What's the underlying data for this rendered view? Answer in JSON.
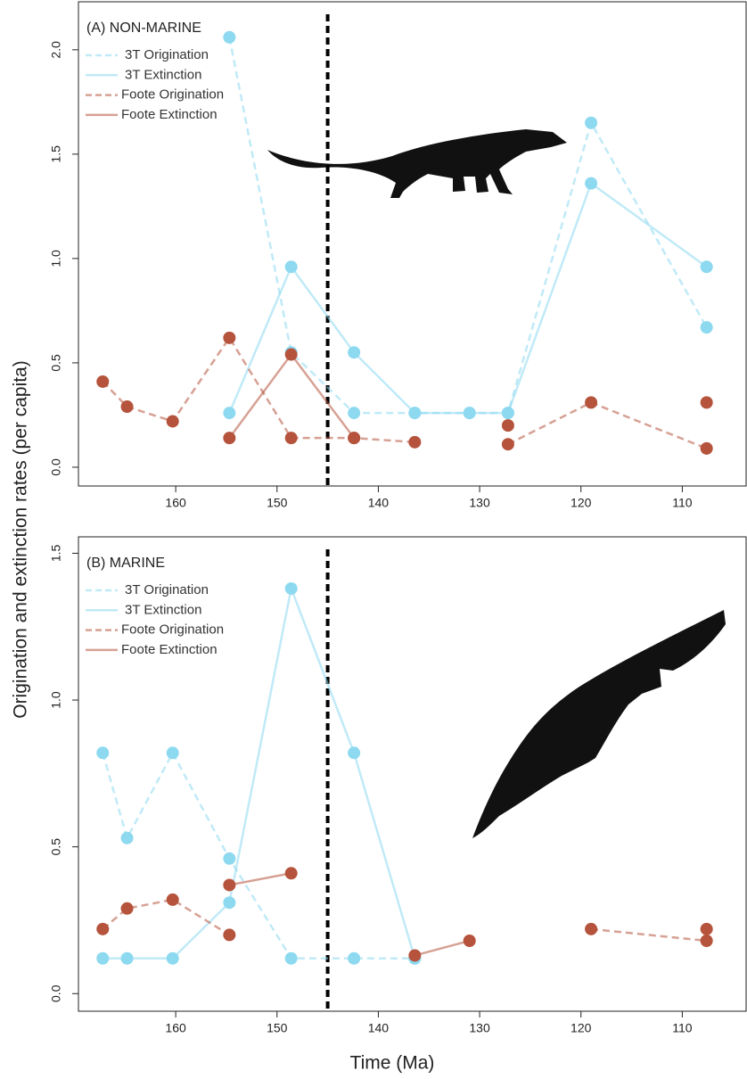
{
  "xlabel": "Time (Ma)",
  "ylabel": "Origination and extinction rates (per capita)",
  "chart_data": [
    {
      "type": "line",
      "title": "(A) NON-MARINE",
      "x": [
        167.2,
        164.8,
        160.3,
        154.7,
        148.6,
        142.4,
        136.4,
        131.0,
        127.2,
        119.0,
        107.6
      ],
      "series": [
        {
          "name": "3T Origination",
          "color": "#8dd9f0",
          "dash": true,
          "values": [
            null,
            null,
            null,
            2.06,
            0.55,
            0.26,
            0.26,
            0.26,
            0.26,
            1.65,
            0.67
          ]
        },
        {
          "name": "3T Extinction",
          "color": "#8dd9f0",
          "dash": false,
          "values": [
            null,
            null,
            null,
            0.26,
            0.96,
            0.55,
            0.26,
            0.26,
            0.26,
            1.36,
            0.96
          ]
        },
        {
          "name": "Foote Origination",
          "color": "#b5533c",
          "dash": true,
          "values": [
            0.41,
            0.29,
            0.22,
            0.62,
            0.14,
            0.14,
            0.12,
            null,
            0.11,
            0.31,
            0.09
          ]
        },
        {
          "name": "Foote Extinction",
          "color": "#b5533c",
          "dash": false,
          "values": [
            null,
            null,
            null,
            0.14,
            0.54,
            0.14,
            null,
            null,
            0.2,
            null,
            0.31
          ]
        }
      ],
      "xlim": [
        169.6,
        103.7
      ],
      "ylim": [
        -0.09,
        2.23
      ],
      "xticks": [
        160,
        150,
        140,
        130,
        120,
        110
      ],
      "yticks": [
        {
          "value": 0,
          "label": "0.0"
        },
        {
          "value": 0.5,
          "label": "0.5"
        },
        {
          "value": 1,
          "label": "1.0"
        },
        {
          "value": 1.5,
          "label": "1.5"
        },
        {
          "value": 2,
          "label": "2.0"
        }
      ],
      "vline": 145
    },
    {
      "type": "line",
      "title": "(B) MARINE",
      "x": [
        167.2,
        164.8,
        160.3,
        154.7,
        148.6,
        142.4,
        136.4,
        131.0,
        127.2,
        119.0,
        107.6
      ],
      "series": [
        {
          "name": "3T Origination",
          "color": "#8dd9f0",
          "dash": true,
          "values": [
            0.82,
            0.53,
            0.82,
            0.46,
            0.12,
            0.12,
            0.12,
            null,
            null,
            null,
            null
          ]
        },
        {
          "name": "3T Extinction",
          "color": "#8dd9f0",
          "dash": false,
          "values": [
            0.12,
            0.12,
            0.12,
            0.31,
            1.38,
            0.82,
            0.12,
            null,
            null,
            null,
            null
          ]
        },
        {
          "name": "Foote Origination",
          "color": "#b5533c",
          "dash": true,
          "values": [
            0.22,
            0.29,
            0.32,
            0.2,
            null,
            null,
            null,
            null,
            null,
            0.22,
            0.18
          ]
        },
        {
          "name": "Foote Extinction",
          "color": "#b5533c",
          "dash": false,
          "values": [
            null,
            null,
            null,
            0.37,
            0.41,
            null,
            0.13,
            0.18,
            null,
            null,
            0.22
          ]
        }
      ],
      "xlim": [
        169.6,
        103.7
      ],
      "ylim": [
        -0.06,
        1.556
      ],
      "xticks": [
        160,
        150,
        140,
        130,
        120,
        110
      ],
      "yticks": [
        {
          "value": 0,
          "label": "0.0"
        },
        {
          "value": 0.5,
          "label": "0.5"
        },
        {
          "value": 1,
          "label": "1.0"
        },
        {
          "value": 1.5,
          "label": "1.5"
        }
      ],
      "vline": 145
    }
  ]
}
